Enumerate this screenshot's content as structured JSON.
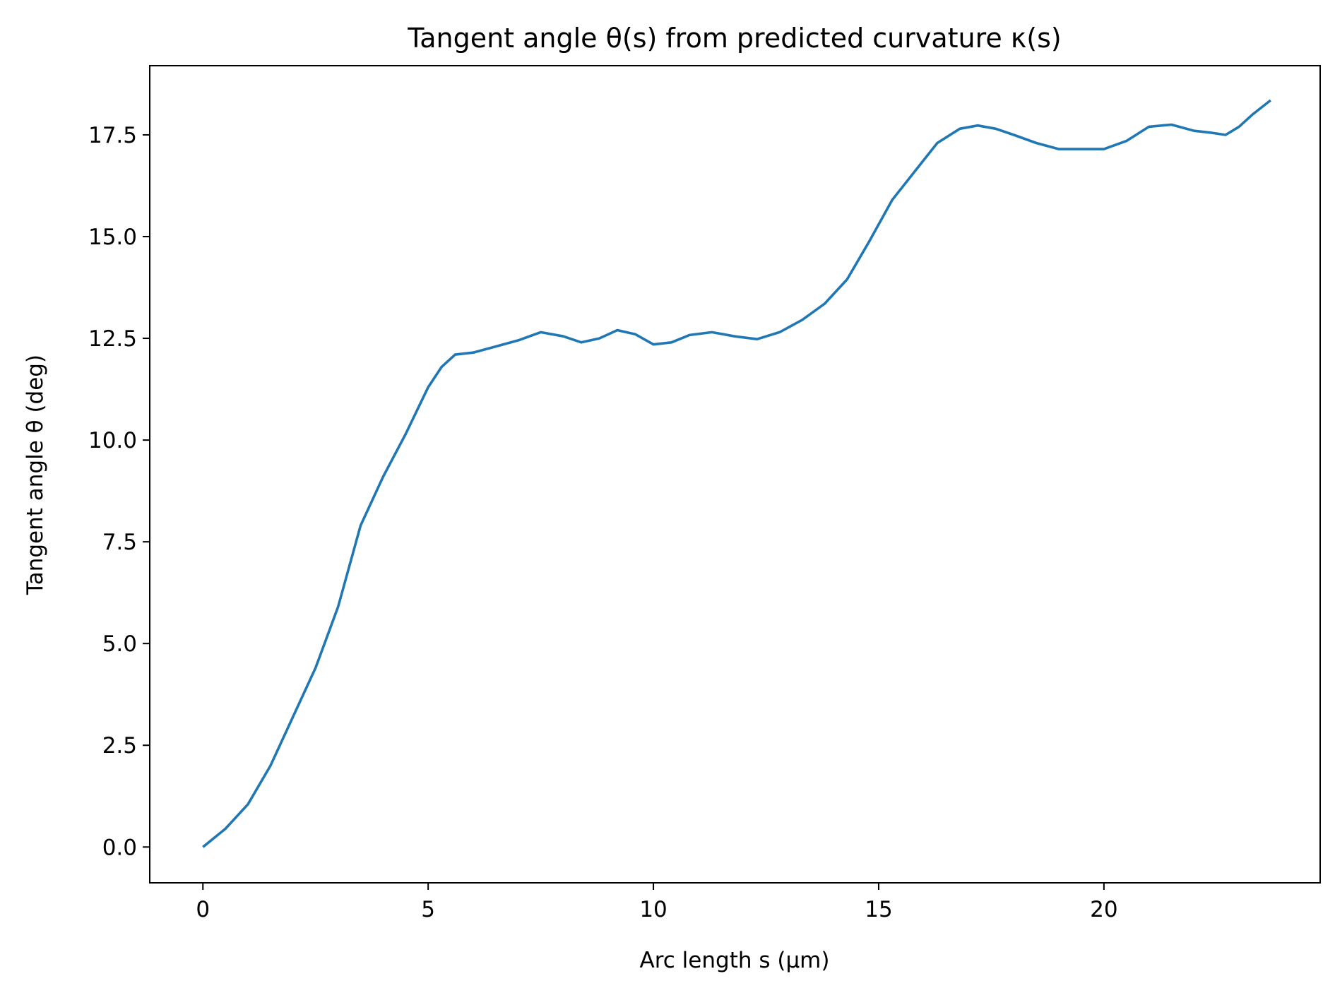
{
  "chart_data": {
    "type": "line",
    "title": "Tangent angle θ(s) from predicted curvature κ(s)",
    "xlabel": "Arc length s (μm)",
    "ylabel": "Tangent angle θ (deg)",
    "xlim": [
      -1.18,
      24.8
    ],
    "ylim": [
      -0.88,
      19.2
    ],
    "xticks": [
      0,
      5,
      10,
      15,
      20
    ],
    "xtick_labels": [
      "0",
      "5",
      "10",
      "15",
      "20"
    ],
    "yticks": [
      0,
      2.5,
      5,
      7.5,
      10,
      12.5,
      15,
      17.5
    ],
    "ytick_labels": [
      "0.0",
      "2.5",
      "5.0",
      "7.5",
      "10.0",
      "12.5",
      "15.0",
      "17.5"
    ],
    "grid": false,
    "line_color": "#1f77b4",
    "series": [
      {
        "x": [
          0,
          0.5,
          1.0,
          1.5,
          2.0,
          2.5,
          3.0,
          3.5,
          4.0,
          4.5,
          5.0,
          5.3,
          5.6,
          6.0,
          6.5,
          7.0,
          7.5,
          8.0,
          8.4,
          8.8,
          9.2,
          9.6,
          10.0,
          10.4,
          10.8,
          11.3,
          11.8,
          12.3,
          12.8,
          13.3,
          13.8,
          14.3,
          14.8,
          15.3,
          15.8,
          16.3,
          16.8,
          17.2,
          17.6,
          18.0,
          18.5,
          19.0,
          19.5,
          20.0,
          20.5,
          21.0,
          21.5,
          22.0,
          22.4,
          22.7,
          23.0,
          23.3,
          23.7
        ],
        "y": [
          0.0,
          0.45,
          1.05,
          2.0,
          3.2,
          4.4,
          5.9,
          7.9,
          9.1,
          10.15,
          11.3,
          11.8,
          12.1,
          12.15,
          12.3,
          12.45,
          12.65,
          12.55,
          12.4,
          12.5,
          12.7,
          12.6,
          12.35,
          12.4,
          12.58,
          12.65,
          12.55,
          12.48,
          12.65,
          12.95,
          13.35,
          13.95,
          14.9,
          15.9,
          16.6,
          17.3,
          17.65,
          17.73,
          17.65,
          17.5,
          17.3,
          17.15,
          17.15,
          17.15,
          17.35,
          17.7,
          17.75,
          17.6,
          17.55,
          17.5,
          17.7,
          18.0,
          18.35
        ]
      }
    ]
  }
}
